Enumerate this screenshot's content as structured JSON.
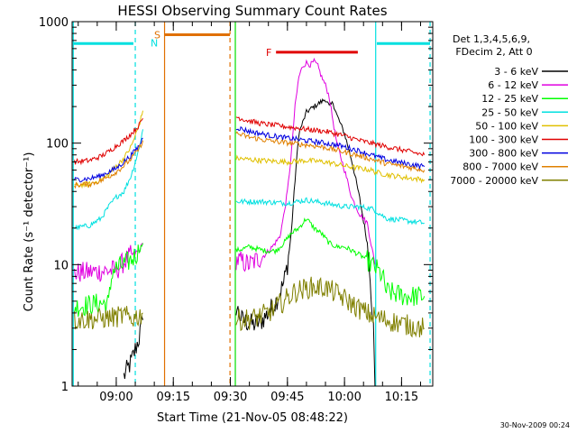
{
  "chart_data": {
    "type": "line",
    "title": "HESSI Observing Summary Count Rates",
    "xlabel": "Start Time (21-Nov-05 08:48:22)",
    "ylabel": "Count Rate (s⁻¹ detector⁻¹)",
    "yscale": "log",
    "ylim": [
      1,
      1000
    ],
    "xlim_minutes_since_0900": [
      -11.6,
      83.2
    ],
    "x_ticks": [
      {
        "m": 0,
        "label": "09:00"
      },
      {
        "m": 15,
        "label": "09:15"
      },
      {
        "m": 30,
        "label": "09:30"
      },
      {
        "m": 45,
        "label": "09:45"
      },
      {
        "m": 60,
        "label": "10:00"
      },
      {
        "m": 75,
        "label": "10:15"
      }
    ],
    "y_ticks": [
      {
        "v": 1,
        "label": "1"
      },
      {
        "v": 10,
        "label": "10"
      },
      {
        "v": 100,
        "label": "100"
      },
      {
        "v": 1000,
        "label": "1000"
      }
    ],
    "legend": {
      "placement": "right",
      "header": [
        "Det 1,3,4,5,6,9,",
        "FDecim 2, Att 0"
      ]
    },
    "series": [
      {
        "name": "3 - 6 keV",
        "color": "#000000",
        "segments": [
          [
            [
              2,
              1.2
            ],
            [
              4,
              1.6
            ],
            [
              6,
              2.5
            ],
            [
              7,
              3.5
            ]
          ],
          [
            [
              31.5,
              4.5
            ],
            [
              33,
              3.5
            ],
            [
              36,
              3.2
            ],
            [
              38,
              3.4
            ],
            [
              40,
              4
            ],
            [
              42,
              5
            ],
            [
              44,
              7
            ],
            [
              45,
              10
            ],
            [
              46,
              18
            ],
            [
              47,
              50
            ],
            [
              48,
              120
            ],
            [
              50,
              180
            ],
            [
              52,
              200
            ],
            [
              54,
              220
            ],
            [
              55,
              230
            ],
            [
              56,
              200
            ],
            [
              57,
              215
            ],
            [
              58,
              170
            ],
            [
              60,
              120
            ],
            [
              62,
              70
            ],
            [
              64,
              35
            ],
            [
              66,
              15
            ],
            [
              67,
              6
            ],
            [
              67.6,
              3
            ],
            [
              68,
              1
            ]
          ]
        ]
      },
      {
        "name": "6 - 12 keV",
        "color": "#e000e0",
        "segments": [
          [
            [
              -11,
              8.5
            ],
            [
              0,
              9
            ],
            [
              2,
              10.5
            ],
            [
              4,
              12
            ],
            [
              6,
              13
            ],
            [
              7,
              15
            ]
          ],
          [
            [
              31.5,
              11
            ],
            [
              35,
              10
            ],
            [
              39,
              12
            ],
            [
              41,
              14
            ],
            [
              43,
              17
            ],
            [
              44,
              25
            ],
            [
              45,
              40
            ],
            [
              46,
              80
            ],
            [
              47,
              200
            ],
            [
              48,
              350
            ],
            [
              49,
              430
            ],
            [
              50,
              460
            ],
            [
              51,
              440
            ],
            [
              52,
              470
            ],
            [
              53,
              430
            ],
            [
              54,
              350
            ],
            [
              55,
              300
            ],
            [
              56,
              240
            ],
            [
              57,
              150
            ],
            [
              58,
              100
            ],
            [
              60,
              60
            ],
            [
              62,
              35
            ],
            [
              64,
              26
            ],
            [
              66,
              22
            ],
            [
              68,
              10
            ]
          ]
        ]
      },
      {
        "name": "12 - 25 keV",
        "color": "#00ff00",
        "segments": [
          [
            [
              -11,
              4.5
            ],
            [
              -4,
              4.8
            ],
            [
              -2,
              4.8
            ],
            [
              -1,
              9
            ],
            [
              2,
              10
            ],
            [
              4,
              11
            ],
            [
              6,
              13
            ],
            [
              7,
              15
            ]
          ],
          [
            [
              31.5,
              13
            ],
            [
              35,
              14
            ],
            [
              39,
              13
            ],
            [
              42,
              13
            ],
            [
              44,
              15
            ],
            [
              46,
              18
            ],
            [
              48,
              20
            ],
            [
              50,
              24
            ],
            [
              52,
              20
            ],
            [
              54,
              18
            ],
            [
              56,
              15
            ],
            [
              58,
              14
            ],
            [
              60,
              14
            ],
            [
              62,
              13
            ],
            [
              64,
              12
            ],
            [
              66,
              11
            ],
            [
              67,
              10
            ],
            [
              68,
              9.5
            ],
            [
              70,
              8
            ],
            [
              71,
              6
            ],
            [
              76,
              5.5
            ],
            [
              81,
              5.5
            ]
          ]
        ]
      },
      {
        "name": "25 - 50 keV",
        "color": "#00e0e0",
        "segments": [
          [
            [
              -11,
              20
            ],
            [
              -7,
              21
            ],
            [
              -4,
              24
            ],
            [
              -2,
              30
            ],
            [
              0,
              36
            ],
            [
              2,
              40
            ],
            [
              4,
              55
            ],
            [
              6,
              90
            ],
            [
              7,
              130
            ]
          ],
          [
            [
              31.5,
              33
            ],
            [
              38,
              33
            ],
            [
              45,
              32
            ],
            [
              50,
              34
            ],
            [
              55,
              32
            ],
            [
              60,
              30
            ],
            [
              64,
              30
            ],
            [
              67,
              29
            ],
            [
              68,
              28
            ],
            [
              71,
              24
            ],
            [
              76,
              23
            ],
            [
              81,
              22
            ]
          ]
        ]
      },
      {
        "name": "50 - 100 keV",
        "color": "#e0c000",
        "segments": [
          [
            [
              -11,
              45
            ],
            [
              -7,
              46
            ],
            [
              -4,
              50
            ],
            [
              -2,
              55
            ],
            [
              0,
              65
            ],
            [
              2,
              75
            ],
            [
              4,
              95
            ],
            [
              6,
              140
            ],
            [
              7,
              185
            ]
          ],
          [
            [
              31.5,
              75
            ],
            [
              38,
              72
            ],
            [
              45,
              70
            ],
            [
              50,
              72
            ],
            [
              55,
              70
            ],
            [
              60,
              65
            ],
            [
              64,
              62
            ],
            [
              67,
              60
            ],
            [
              68,
              58
            ],
            [
              71,
              55
            ],
            [
              76,
              52
            ],
            [
              81,
              50
            ]
          ]
        ]
      },
      {
        "name": "100 - 300 keV",
        "color": "#e00000",
        "segments": [
          [
            [
              -11,
              70
            ],
            [
              -7,
              72
            ],
            [
              -4,
              78
            ],
            [
              -2,
              85
            ],
            [
              0,
              95
            ],
            [
              2,
              105
            ],
            [
              4,
              120
            ],
            [
              6,
              140
            ],
            [
              7,
              160
            ]
          ],
          [
            [
              31.5,
              165
            ],
            [
              34,
              155
            ],
            [
              38,
              145
            ],
            [
              42,
              140
            ],
            [
              46,
              135
            ],
            [
              50,
              130
            ],
            [
              55,
              125
            ],
            [
              60,
              115
            ],
            [
              64,
              105
            ],
            [
              67,
              100
            ],
            [
              70,
              95
            ],
            [
              75,
              88
            ],
            [
              81,
              80
            ]
          ]
        ]
      },
      {
        "name": "300 - 800 keV",
        "color": "#0000e0",
        "segments": [
          [
            [
              -11,
              50
            ],
            [
              -7,
              51
            ],
            [
              -4,
              54
            ],
            [
              -2,
              58
            ],
            [
              0,
              62
            ],
            [
              2,
              70
            ],
            [
              4,
              80
            ],
            [
              6,
              95
            ],
            [
              7,
              110
            ]
          ],
          [
            [
              31.5,
              135
            ],
            [
              35,
              125
            ],
            [
              39,
              118
            ],
            [
              43,
              112
            ],
            [
              47,
              108
            ],
            [
              51,
              104
            ],
            [
              55,
              100
            ],
            [
              59,
              95
            ],
            [
              63,
              88
            ],
            [
              67,
              80
            ],
            [
              71,
              73
            ],
            [
              76,
              68
            ],
            [
              81,
              64
            ]
          ]
        ]
      },
      {
        "name": "800 - 7000 keV",
        "color": "#e08000",
        "segments": [
          [
            [
              -11,
              45
            ],
            [
              -7,
              46
            ],
            [
              -4,
              49
            ],
            [
              -2,
              53
            ],
            [
              0,
              58
            ],
            [
              2,
              65
            ],
            [
              4,
              75
            ],
            [
              6,
              90
            ],
            [
              7,
              105
            ]
          ],
          [
            [
              31.5,
              120
            ],
            [
              35,
              112
            ],
            [
              39,
              106
            ],
            [
              43,
              102
            ],
            [
              47,
              99
            ],
            [
              51,
              96
            ],
            [
              55,
              92
            ],
            [
              59,
              86
            ],
            [
              63,
              80
            ],
            [
              67,
              74
            ],
            [
              71,
              68
            ],
            [
              76,
              64
            ],
            [
              81,
              60
            ]
          ]
        ]
      },
      {
        "name": "7000 - 20000 keV",
        "color": "#808000",
        "segments": [
          [
            [
              -11,
              3.5
            ],
            [
              -4,
              3.6
            ],
            [
              0,
              3.7
            ],
            [
              2,
              3.8
            ],
            [
              4,
              3.6
            ],
            [
              6,
              3.8
            ],
            [
              7,
              4
            ]
          ],
          [
            [
              31.5,
              3.5
            ],
            [
              36,
              3.6
            ],
            [
              40,
              4
            ],
            [
              44,
              5
            ],
            [
              47,
              6
            ],
            [
              51,
              6.5
            ],
            [
              55,
              6.5
            ],
            [
              59,
              5.5
            ],
            [
              63,
              4.5
            ],
            [
              67,
              3.8
            ],
            [
              71,
              3.5
            ],
            [
              76,
              3.2
            ],
            [
              81,
              3
            ]
          ]
        ]
      }
    ],
    "flag_bars": [
      {
        "label": "S",
        "color": "#e07000",
        "x_start": 12.7,
        "x_end": 29.9,
        "y": 780
      },
      {
        "label": "F",
        "color": "#e00000",
        "x_start": 42,
        "x_end": 63.5,
        "y": 560
      },
      {
        "label": "",
        "color": "#00e0e0",
        "x_start": -11.3,
        "x_end": 4.5,
        "y": 660
      },
      {
        "label": "",
        "color": "#00e0e0",
        "x_start": 68.5,
        "x_end": 82.5,
        "y": 660
      }
    ],
    "extra_labels": [
      {
        "text": "N",
        "color": "#00e0e0",
        "x": 10,
        "y": 670
      }
    ],
    "vertical_markers": [
      {
        "x": -11.3,
        "color": "#00e0e0",
        "style": "solid"
      },
      {
        "x": 5,
        "color": "#00e0e0",
        "style": "dashed"
      },
      {
        "x": 12.7,
        "color": "#e07000",
        "style": "solid"
      },
      {
        "x": 29.9,
        "color": "#e07000",
        "style": "dashed"
      },
      {
        "x": 31.3,
        "color": "#00e000",
        "style": "solid"
      },
      {
        "x": 68.2,
        "color": "#00e0e0",
        "style": "solid"
      },
      {
        "x": 82.5,
        "color": "#00e0e0",
        "style": "dashed"
      }
    ]
  },
  "footer": {
    "timestamp": "30-Nov-2009 00:24"
  }
}
